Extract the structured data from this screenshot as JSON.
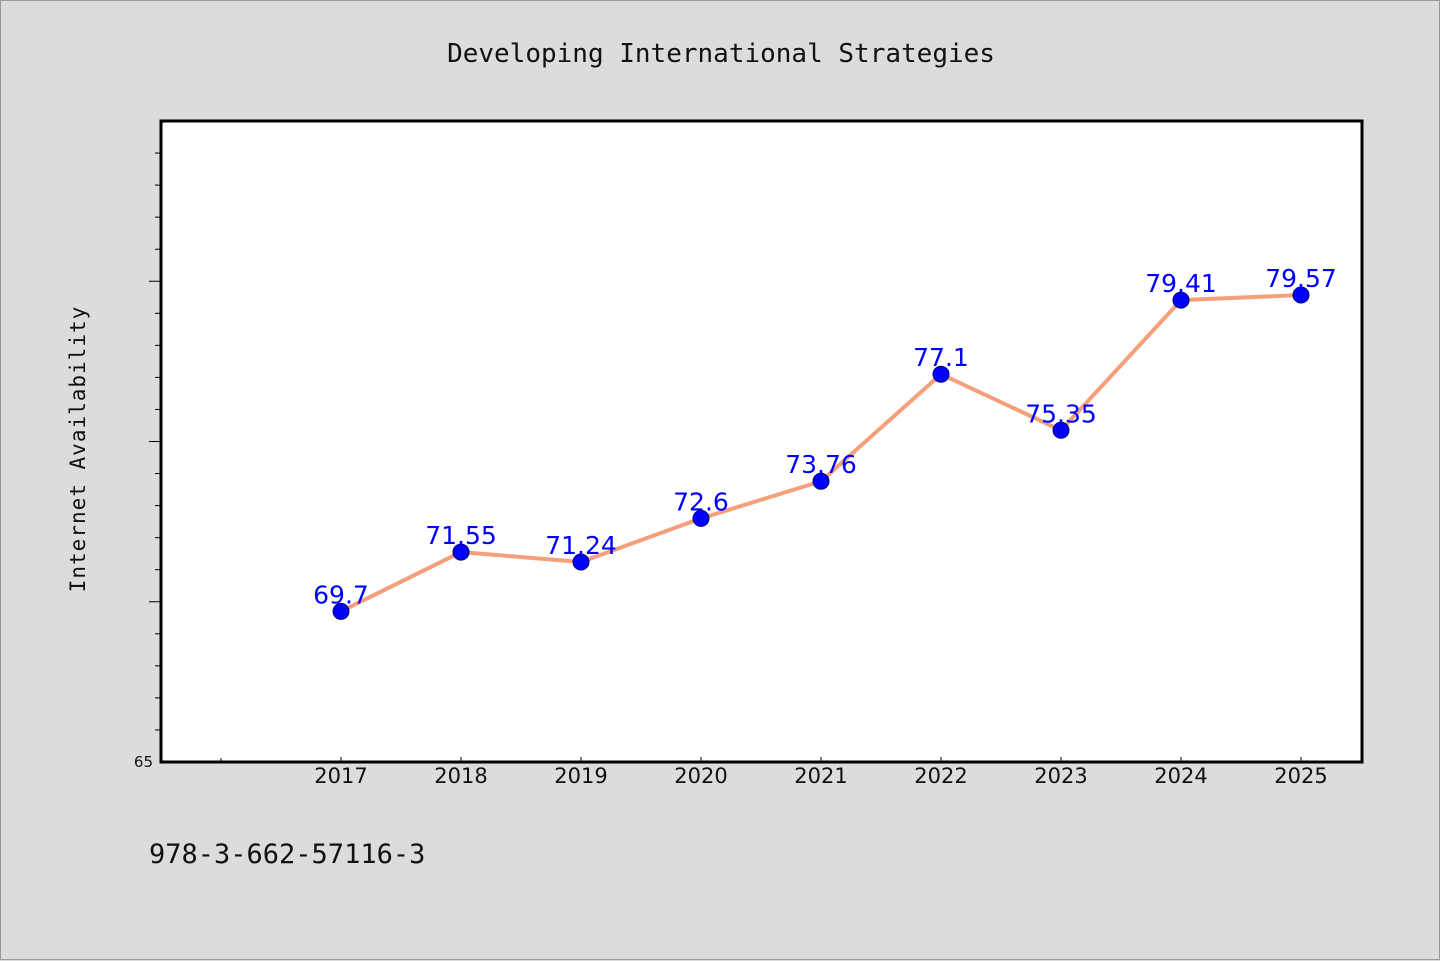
{
  "chart_data": {
    "type": "line",
    "title": "Developing International Strategies",
    "xlabel": "",
    "ylabel": "Internet Availability",
    "categories": [
      "2017",
      "2018",
      "2019",
      "2020",
      "2021",
      "2022",
      "2023",
      "2024",
      "2025"
    ],
    "series": [
      {
        "values": [
          69.7,
          71.55,
          71.24,
          72.6,
          73.76,
          77.1,
          75.35,
          79.41,
          79.57
        ],
        "data_labels": [
          "69.7",
          "71.55",
          "71.24",
          "72.6",
          "73.76",
          "77.1",
          "75.35",
          "79.41",
          "79.57"
        ],
        "line_color": "#f4a07a",
        "marker_color": "#0000ff"
      }
    ],
    "ylim": [
      65,
      85
    ],
    "y_tick_labels": [
      "65"
    ],
    "grid": false,
    "legend": "none"
  },
  "footer": {
    "isbn": "978-3-662-57116-3"
  },
  "colors": {
    "background": "#dcdcdc",
    "plot_background": "#ffffff",
    "axis": "#000000",
    "label_color": "#0000ff"
  }
}
